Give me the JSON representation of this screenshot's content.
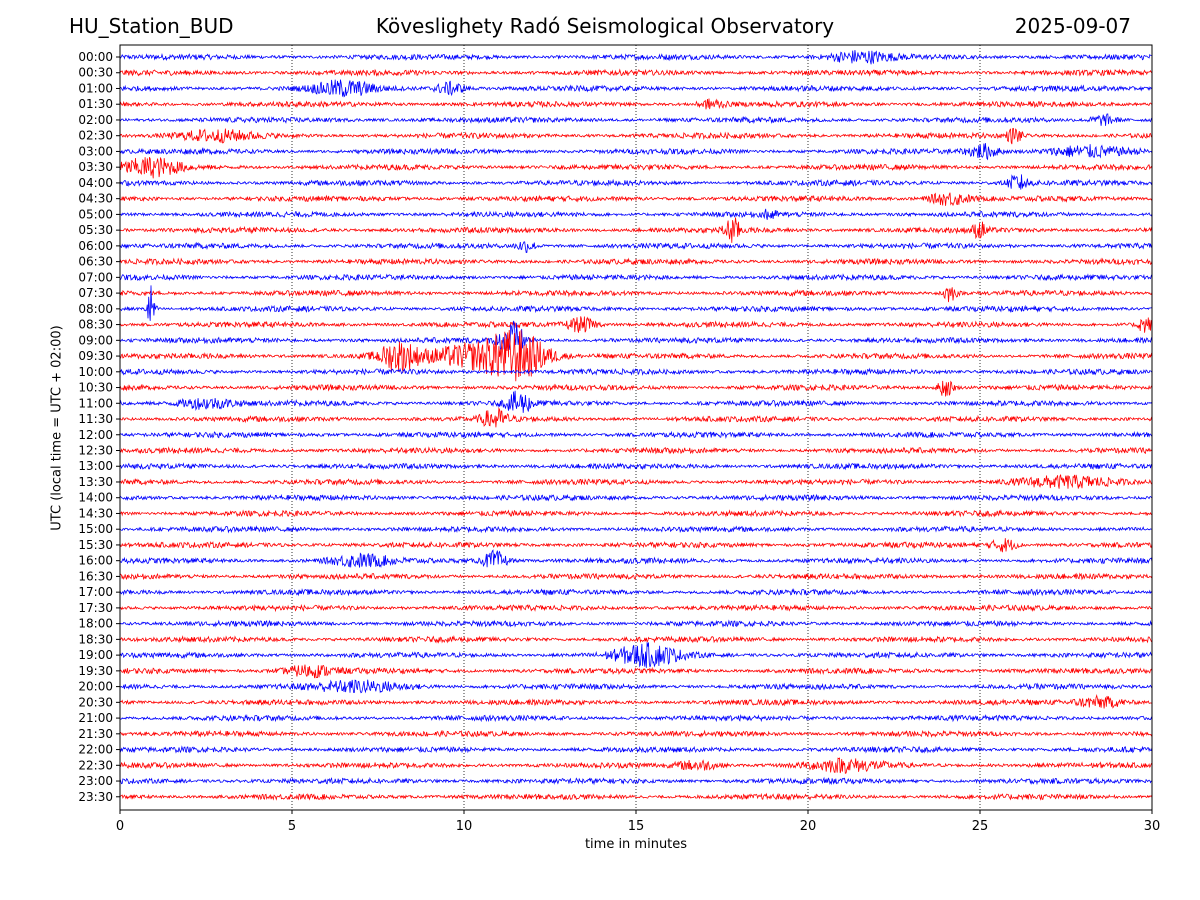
{
  "header": {
    "station": "HU_Station_BUD",
    "observatory": "Köveslighety Radó Seismological Observatory",
    "date": "2025-09-07"
  },
  "chart_data": {
    "type": "line",
    "subtype": "helicorder",
    "xlabel": "time in minutes",
    "ylabel": "UTC (local time = UTC + 02:00)",
    "xlim": [
      0,
      30
    ],
    "x_ticks": [
      0,
      5,
      10,
      15,
      20,
      25,
      30
    ],
    "vertical_grid": "dotted",
    "trace_colors": [
      "#0000ff",
      "#ff0000"
    ],
    "row_labels": [
      "00:00",
      "00:30",
      "01:00",
      "01:30",
      "02:00",
      "02:30",
      "03:00",
      "03:30",
      "04:00",
      "04:30",
      "05:00",
      "05:30",
      "06:00",
      "06:30",
      "07:00",
      "07:30",
      "08:00",
      "08:30",
      "09:00",
      "09:30",
      "10:00",
      "10:30",
      "11:00",
      "11:30",
      "12:00",
      "12:30",
      "13:00",
      "13:30",
      "14:00",
      "14:30",
      "15:00",
      "15:30",
      "16:00",
      "16:30",
      "17:00",
      "17:30",
      "18:00",
      "18:30",
      "19:00",
      "19:30",
      "20:00",
      "20:30",
      "21:00",
      "21:30",
      "22:00",
      "22:30",
      "23:00",
      "23:30"
    ],
    "events": [
      {
        "row": "00:00",
        "minute": 21.5,
        "amplitude": 0.35,
        "duration": 1.2
      },
      {
        "row": "01:00",
        "minute": 6.5,
        "amplitude": 0.45,
        "duration": 1.2
      },
      {
        "row": "01:00",
        "minute": 9.6,
        "amplitude": 0.4,
        "duration": 0.6
      },
      {
        "row": "01:30",
        "minute": 17.2,
        "amplitude": 0.3,
        "duration": 0.5
      },
      {
        "row": "02:00",
        "minute": 28.6,
        "amplitude": 0.35,
        "duration": 0.5
      },
      {
        "row": "02:30",
        "minute": 2.8,
        "amplitude": 0.3,
        "duration": 1.5
      },
      {
        "row": "02:30",
        "minute": 26.0,
        "amplitude": 0.5,
        "duration": 0.3
      },
      {
        "row": "03:00",
        "minute": 25.1,
        "amplitude": 0.45,
        "duration": 0.6
      },
      {
        "row": "03:00",
        "minute": 28.0,
        "amplitude": 0.35,
        "duration": 1.5
      },
      {
        "row": "03:30",
        "minute": 0.9,
        "amplitude": 0.55,
        "duration": 1.2
      },
      {
        "row": "04:00",
        "minute": 26.1,
        "amplitude": 0.5,
        "duration": 0.4
      },
      {
        "row": "04:30",
        "minute": 24.1,
        "amplitude": 0.4,
        "duration": 0.8
      },
      {
        "row": "05:00",
        "minute": 18.9,
        "amplitude": 0.4,
        "duration": 0.2
      },
      {
        "row": "05:30",
        "minute": 17.8,
        "amplitude": 0.8,
        "duration": 0.3
      },
      {
        "row": "05:30",
        "minute": 25.0,
        "amplitude": 0.45,
        "duration": 0.3
      },
      {
        "row": "06:00",
        "minute": 11.8,
        "amplitude": 0.35,
        "duration": 0.4
      },
      {
        "row": "07:30",
        "minute": 24.1,
        "amplitude": 0.55,
        "duration": 0.3
      },
      {
        "row": "08:00",
        "minute": 0.9,
        "amplitude": 1.6,
        "duration": 0.15
      },
      {
        "row": "08:30",
        "minute": 13.4,
        "amplitude": 0.45,
        "duration": 0.6
      },
      {
        "row": "08:30",
        "minute": 29.8,
        "amplitude": 0.5,
        "duration": 0.3
      },
      {
        "row": "09:00",
        "minute": 11.4,
        "amplitude": 1.2,
        "duration": 0.5
      },
      {
        "row": "09:30",
        "minute": 8.1,
        "amplitude": 0.9,
        "duration": 0.8
      },
      {
        "row": "09:30",
        "minute": 10.0,
        "amplitude": 0.6,
        "duration": 1.5
      },
      {
        "row": "09:30",
        "minute": 11.5,
        "amplitude": 1.6,
        "duration": 1.3
      },
      {
        "row": "10:30",
        "minute": 24.0,
        "amplitude": 0.6,
        "duration": 0.3
      },
      {
        "row": "11:00",
        "minute": 11.6,
        "amplitude": 0.7,
        "duration": 0.5
      },
      {
        "row": "11:00",
        "minute": 2.5,
        "amplitude": 0.35,
        "duration": 1.2
      },
      {
        "row": "11:30",
        "minute": 10.9,
        "amplitude": 0.6,
        "duration": 0.5
      },
      {
        "row": "13:30",
        "minute": 27.5,
        "amplitude": 0.3,
        "duration": 2.0
      },
      {
        "row": "15:30",
        "minute": 25.7,
        "amplitude": 0.4,
        "duration": 0.5
      },
      {
        "row": "16:00",
        "minute": 10.9,
        "amplitude": 0.6,
        "duration": 0.5
      },
      {
        "row": "16:00",
        "minute": 7.0,
        "amplitude": 0.35,
        "duration": 1.2
      },
      {
        "row": "19:00",
        "minute": 15.3,
        "amplitude": 0.65,
        "duration": 1.3
      },
      {
        "row": "19:30",
        "minute": 5.5,
        "amplitude": 0.35,
        "duration": 1.0
      },
      {
        "row": "20:00",
        "minute": 7.0,
        "amplitude": 0.3,
        "duration": 2.0
      },
      {
        "row": "20:30",
        "minute": 28.5,
        "amplitude": 0.35,
        "duration": 1.0
      },
      {
        "row": "22:30",
        "minute": 21.0,
        "amplitude": 0.35,
        "duration": 1.5
      },
      {
        "row": "22:30",
        "minute": 16.8,
        "amplitude": 0.3,
        "duration": 0.8
      }
    ]
  }
}
